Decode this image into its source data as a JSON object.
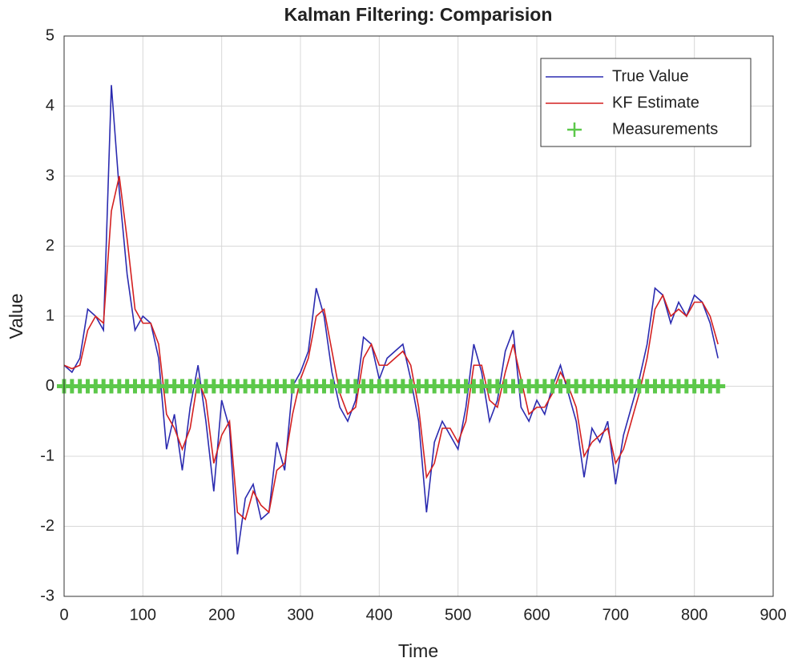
{
  "chart_data": {
    "type": "line",
    "title": "Kalman Filtering: Comparision",
    "xlabel": "Time",
    "ylabel": "Value",
    "x": [
      0,
      10,
      20,
      30,
      40,
      50,
      60,
      70,
      80,
      90,
      100,
      110,
      120,
      130,
      140,
      150,
      160,
      170,
      180,
      190,
      200,
      210,
      220,
      230,
      240,
      250,
      260,
      270,
      280,
      290,
      300,
      310,
      320,
      330,
      340,
      350,
      360,
      370,
      380,
      390,
      400,
      410,
      420,
      430,
      440,
      450,
      460,
      470,
      480,
      490,
      500,
      510,
      520,
      530,
      540,
      550,
      560,
      570,
      580,
      590,
      600,
      610,
      620,
      630,
      640,
      650,
      660,
      670,
      680,
      690,
      700,
      710,
      720,
      730,
      740,
      750,
      760,
      770,
      780,
      790,
      800,
      810,
      820,
      830
    ],
    "series": [
      {
        "name": "True Value",
        "color": "#2b2bb0",
        "marker": "none",
        "values": [
          0.3,
          0.2,
          0.4,
          1.1,
          1.0,
          0.8,
          4.3,
          2.8,
          1.6,
          0.8,
          1.0,
          0.9,
          0.4,
          -0.9,
          -0.4,
          -1.2,
          -0.3,
          0.3,
          -0.5,
          -1.5,
          -0.2,
          -0.6,
          -2.4,
          -1.6,
          -1.4,
          -1.9,
          -1.8,
          -0.8,
          -1.2,
          0.0,
          0.2,
          0.5,
          1.4,
          1.0,
          0.2,
          -0.3,
          -0.5,
          -0.2,
          0.7,
          0.6,
          0.1,
          0.4,
          0.5,
          0.6,
          0.1,
          -0.5,
          -1.8,
          -0.8,
          -0.5,
          -0.7,
          -0.9,
          -0.3,
          0.6,
          0.2,
          -0.5,
          -0.2,
          0.5,
          0.8,
          -0.3,
          -0.5,
          -0.2,
          -0.4,
          0.0,
          0.3,
          -0.1,
          -0.5,
          -1.3,
          -0.6,
          -0.8,
          -0.5,
          -1.4,
          -0.7,
          -0.3,
          0.1,
          0.6,
          1.4,
          1.3,
          0.9,
          1.2,
          1.0,
          1.3,
          1.2,
          0.9,
          0.4
        ]
      },
      {
        "name": "KF Estimate",
        "color": "#d42020",
        "marker": "none",
        "values": [
          0.3,
          0.25,
          0.3,
          0.8,
          1.0,
          0.9,
          2.5,
          3.0,
          2.1,
          1.1,
          0.9,
          0.9,
          0.6,
          -0.4,
          -0.6,
          -0.9,
          -0.6,
          0.1,
          -0.2,
          -1.1,
          -0.7,
          -0.5,
          -1.8,
          -1.9,
          -1.5,
          -1.7,
          -1.8,
          -1.2,
          -1.1,
          -0.4,
          0.1,
          0.4,
          1.0,
          1.1,
          0.5,
          -0.1,
          -0.4,
          -0.3,
          0.4,
          0.6,
          0.3,
          0.3,
          0.4,
          0.5,
          0.3,
          -0.3,
          -1.3,
          -1.1,
          -0.6,
          -0.6,
          -0.8,
          -0.5,
          0.3,
          0.3,
          -0.2,
          -0.3,
          0.2,
          0.6,
          0.1,
          -0.4,
          -0.3,
          -0.3,
          -0.1,
          0.2,
          0.0,
          -0.3,
          -1.0,
          -0.8,
          -0.7,
          -0.6,
          -1.1,
          -0.9,
          -0.5,
          -0.1,
          0.4,
          1.1,
          1.3,
          1.0,
          1.1,
          1.0,
          1.2,
          1.2,
          1.0,
          0.6
        ]
      },
      {
        "name": "Measurements",
        "color": "#5cc84a",
        "marker": "plus",
        "values": [
          0,
          0,
          0,
          0,
          0,
          0,
          0,
          0,
          0,
          0,
          0,
          0,
          0,
          0,
          0,
          0,
          0,
          0,
          0,
          0,
          0,
          0,
          0,
          0,
          0,
          0,
          0,
          0,
          0,
          0,
          0,
          0,
          0,
          0,
          0,
          0,
          0,
          0,
          0,
          0,
          0,
          0,
          0,
          0,
          0,
          0,
          0,
          0,
          0,
          0,
          0,
          0,
          0,
          0,
          0,
          0,
          0,
          0,
          0,
          0,
          0,
          0,
          0,
          0,
          0,
          0,
          0,
          0,
          0,
          0,
          0,
          0,
          0,
          0,
          0,
          0,
          0,
          0,
          0,
          0,
          0,
          0,
          0,
          0
        ]
      }
    ],
    "xlim": [
      0,
      900
    ],
    "xticks": [
      0,
      100,
      200,
      300,
      400,
      500,
      600,
      700,
      800,
      900
    ],
    "ylim": [
      -3,
      5
    ],
    "yticks": [
      -3,
      -2,
      -1,
      0,
      1,
      2,
      3,
      4,
      5
    ],
    "grid": true,
    "legend": "upper right"
  }
}
